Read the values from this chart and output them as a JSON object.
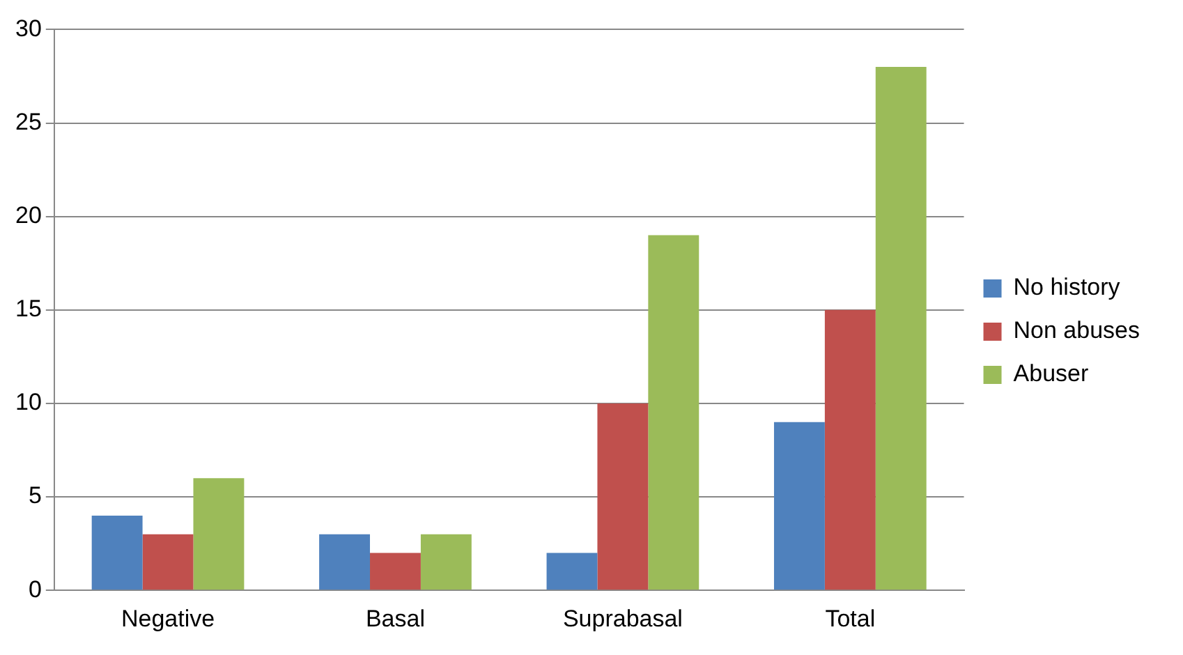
{
  "chart_data": {
    "type": "bar",
    "categories": [
      "Negative",
      "Basal",
      "Suprabasal",
      "Total"
    ],
    "series": [
      {
        "name": "No history",
        "color": "#4f81bd",
        "values": [
          4,
          3,
          2,
          9
        ]
      },
      {
        "name": "Non abuses",
        "color": "#c0504d",
        "values": [
          3,
          2,
          10,
          15
        ]
      },
      {
        "name": "Abuser",
        "color": "#9bbb59",
        "values": [
          6,
          3,
          19,
          28
        ]
      }
    ],
    "ylim": [
      0,
      30
    ],
    "yticks": [
      0,
      5,
      10,
      15,
      20,
      25,
      30
    ],
    "grid": "y",
    "legend": "right"
  }
}
